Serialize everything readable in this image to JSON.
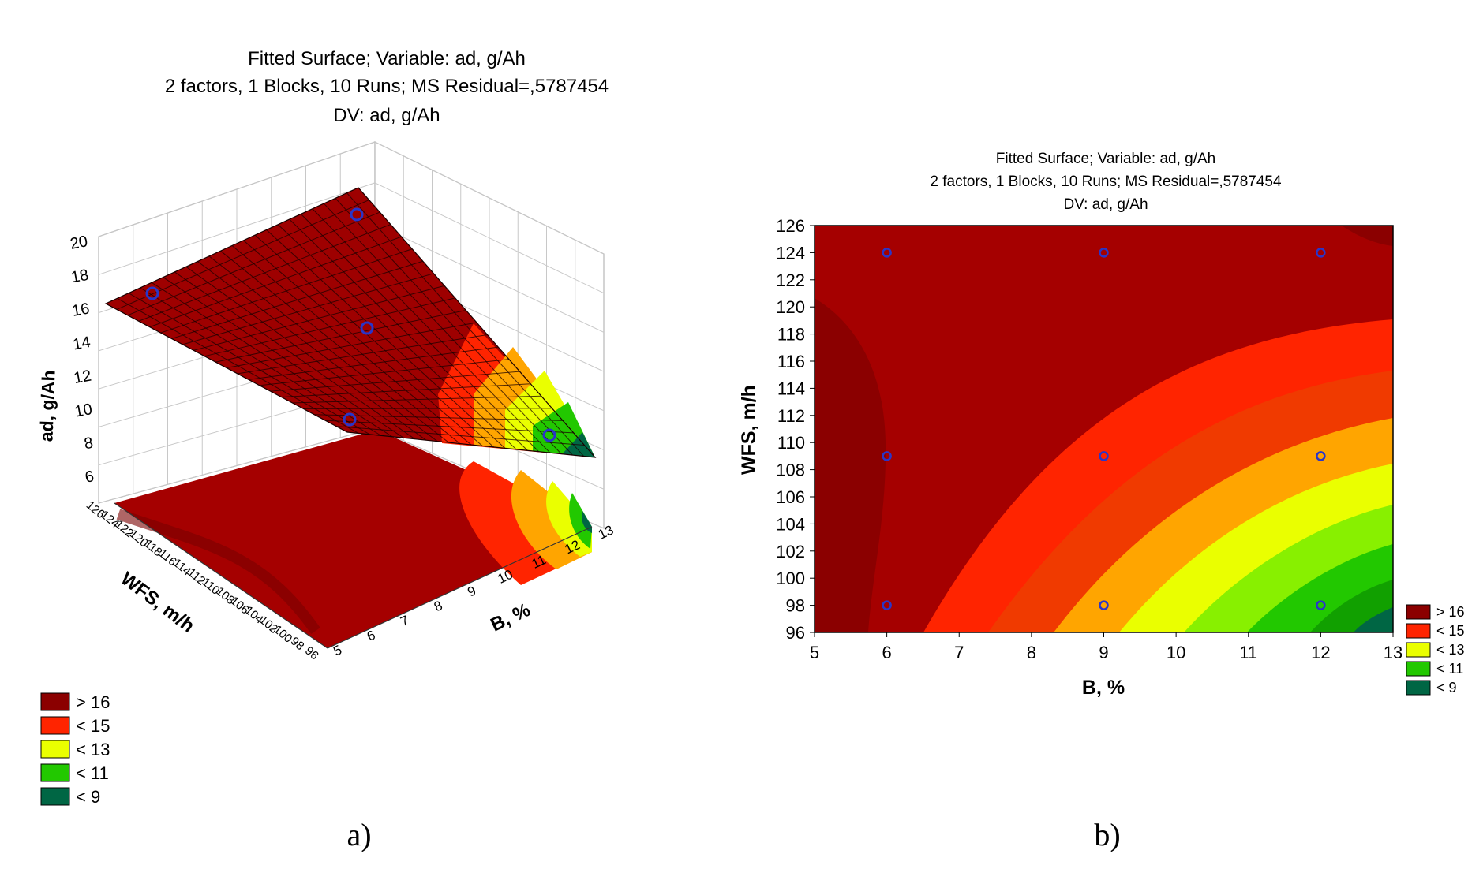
{
  "figure": {
    "panel_a_label": "a)",
    "panel_b_label": "b)"
  },
  "chart_data": [
    {
      "type": "surface3d",
      "title": [
        "Fitted Surface; Variable: ad, g/Ah",
        "2 factors, 1 Blocks, 10 Runs; MS Residual=,5787454",
        "DV: ad, g/Ah"
      ],
      "xlabel": "B, %",
      "ylabel": "WFS, m/h",
      "zlabel": "ad, g/Ah",
      "xlim": [
        5,
        13
      ],
      "ylim": [
        96,
        126
      ],
      "zlim": [
        6,
        20
      ],
      "x_ticks": [
        5,
        6,
        7,
        8,
        9,
        10,
        11,
        12,
        13
      ],
      "y_ticks": [
        96,
        98,
        100,
        102,
        104,
        106,
        108,
        110,
        112,
        114,
        116,
        118,
        120,
        122,
        124,
        126
      ],
      "z_ticks": [
        6,
        8,
        10,
        12,
        14,
        16,
        18,
        20
      ],
      "grid": true,
      "legend_position": "bottom-left",
      "legend": [
        {
          "label": "> 16",
          "color": "#8b0000"
        },
        {
          "label": "< 15",
          "color": "#ff2400"
        },
        {
          "label": "< 13",
          "color": "#eaff00"
        },
        {
          "label": "< 11",
          "color": "#22c800"
        },
        {
          "label": "< 9",
          "color": "#006644"
        }
      ],
      "points": [
        {
          "x": 6,
          "y": 98,
          "z": 16.7
        },
        {
          "x": 12,
          "y": 124,
          "z": 17.8
        },
        {
          "x": 9,
          "y": 109,
          "z": 14.6
        },
        {
          "x": 12,
          "y": 98,
          "z": 9.1
        },
        {
          "x": 12,
          "y": 109,
          "z": 10.6
        }
      ]
    },
    {
      "type": "contour",
      "title": [
        "Fitted Surface; Variable: ad, g/Ah",
        "2 factors, 1 Blocks, 10 Runs; MS Residual=,5787454",
        "DV: ad, g/Ah"
      ],
      "xlabel": "B, %",
      "ylabel": "WFS, m/h",
      "xlim": [
        5,
        13
      ],
      "ylim": [
        96,
        126
      ],
      "x_ticks": [
        5,
        6,
        7,
        8,
        9,
        10,
        11,
        12,
        13
      ],
      "y_ticks": [
        96,
        98,
        100,
        102,
        104,
        106,
        108,
        110,
        112,
        114,
        116,
        118,
        120,
        122,
        124,
        126
      ],
      "legend_position": "bottom-right",
      "legend": [
        {
          "label": "> 16",
          "color": "#8b0000"
        },
        {
          "label": "< 15",
          "color": "#ff2400"
        },
        {
          "label": "< 13",
          "color": "#eaff00"
        },
        {
          "label": "< 11",
          "color": "#22c800"
        },
        {
          "label": "< 9",
          "color": "#006644"
        }
      ],
      "points": [
        {
          "x": 6,
          "y": 124
        },
        {
          "x": 9,
          "y": 124
        },
        {
          "x": 12,
          "y": 124
        },
        {
          "x": 6,
          "y": 109
        },
        {
          "x": 9,
          "y": 109
        },
        {
          "x": 12,
          "y": 109
        },
        {
          "x": 6,
          "y": 98
        },
        {
          "x": 9,
          "y": 98
        },
        {
          "x": 12,
          "y": 98
        }
      ]
    }
  ]
}
